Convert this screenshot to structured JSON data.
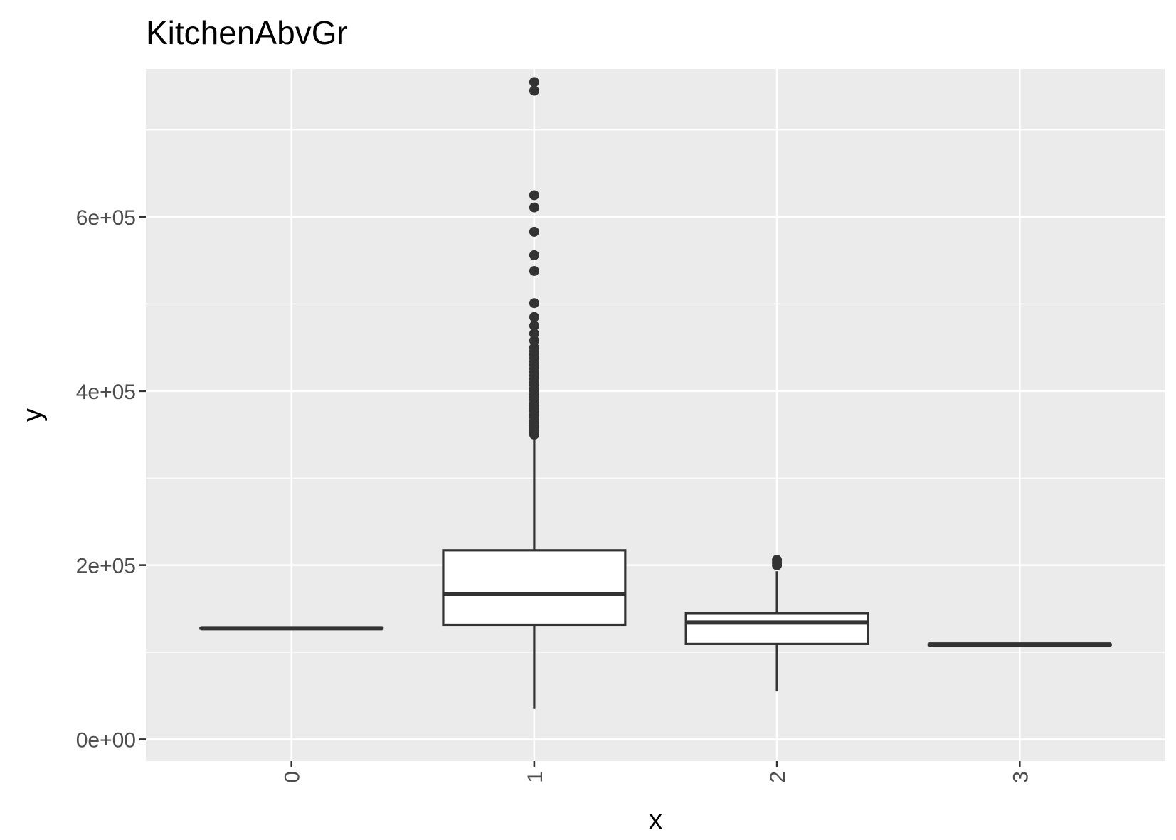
{
  "chart_data": {
    "type": "boxplot",
    "title": "KitchenAbvGr",
    "xlabel": "x",
    "ylabel": "y",
    "categories": [
      "0",
      "1",
      "2",
      "3"
    ],
    "ylim": [
      -25000,
      770000
    ],
    "y_ticks": [
      0,
      200000,
      400000,
      600000
    ],
    "y_tick_labels": [
      "0e+00",
      "2e+05",
      "4e+05",
      "6e+05"
    ],
    "x_tick_rotation": "vertical",
    "grid": true,
    "background": "#ebebeb",
    "grid_color": "#ffffff",
    "box_fill": "#ffffff",
    "line_color": "#333333",
    "boxes": [
      {
        "category": "0",
        "min": 127500,
        "q1": 127500,
        "median": 127500,
        "q3": 127500,
        "max": 127500,
        "outliers": []
      },
      {
        "category": "1",
        "min": 34900,
        "q1": 131500,
        "median": 167000,
        "q3": 217000,
        "max": 345000,
        "outliers": [
          350000,
          352000,
          355000,
          358000,
          360000,
          363000,
          366000,
          370000,
          373000,
          377000,
          380000,
          383000,
          386000,
          390000,
          393000,
          396000,
          400000,
          403000,
          407000,
          410000,
          414000,
          418000,
          422000,
          426000,
          430000,
          434000,
          438000,
          442000,
          446000,
          450000,
          458000,
          466000,
          475000,
          485000,
          501000,
          538000,
          556000,
          583000,
          611000,
          625000,
          745000,
          755000
        ]
      },
      {
        "category": "2",
        "min": 55000,
        "q1": 109500,
        "median": 134000,
        "q3": 145000,
        "max": 193000,
        "outliers": [
          200000,
          203000,
          206000
        ]
      },
      {
        "category": "3",
        "min": 108900,
        "q1": 108900,
        "median": 108900,
        "q3": 108900,
        "max": 108900,
        "outliers": []
      }
    ]
  }
}
